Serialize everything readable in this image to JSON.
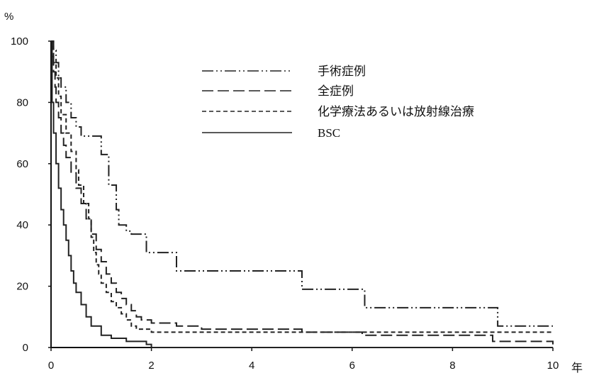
{
  "chart_data": {
    "type": "line",
    "title": "",
    "xlabel": "",
    "ylabel": "",
    "y_unit_label": "%",
    "x_unit_label": "年",
    "xlim": [
      0,
      10
    ],
    "ylim": [
      0,
      100
    ],
    "x_ticks": [
      0,
      2,
      4,
      6,
      8,
      10
    ],
    "y_ticks": [
      0,
      20,
      40,
      60,
      80,
      100
    ],
    "grid": false,
    "legend_position": "top-center",
    "series": [
      {
        "name": "手術症例",
        "style": "dash-dot-dot",
        "color": "#222222",
        "x": [
          0,
          0.05,
          0.1,
          0.15,
          0.2,
          0.3,
          0.4,
          0.5,
          0.6,
          1.0,
          1.15,
          1.3,
          1.35,
          1.5,
          1.6,
          1.9,
          2.5,
          5.0,
          6.25,
          8.9,
          10.0
        ],
        "y": [
          100,
          97,
          93,
          88,
          85,
          80,
          75,
          72,
          69,
          63,
          53,
          45,
          40,
          38,
          37,
          31,
          25,
          19,
          13,
          7,
          7
        ]
      },
      {
        "name": "全症例",
        "style": "dashed",
        "color": "#222222",
        "x": [
          0,
          0.02,
          0.05,
          0.08,
          0.1,
          0.15,
          0.2,
          0.25,
          0.3,
          0.4,
          0.5,
          0.6,
          0.7,
          0.8,
          0.9,
          1.0,
          1.1,
          1.2,
          1.3,
          1.4,
          1.5,
          1.6,
          1.7,
          1.8,
          2.0,
          2.5,
          3.0,
          5.0,
          6.2,
          8.8,
          10.0
        ],
        "y": [
          100,
          95,
          90,
          85,
          80,
          75,
          70,
          66,
          62,
          57,
          52,
          47,
          42,
          37,
          32,
          28,
          24,
          21,
          18,
          16,
          14,
          12,
          10,
          9,
          8,
          7,
          6,
          5,
          4,
          2,
          1
        ]
      },
      {
        "name": "化学療法あるいは放射線治療",
        "style": "dotted-dash",
        "color": "#222222",
        "x": [
          0,
          0.05,
          0.1,
          0.15,
          0.2,
          0.3,
          0.4,
          0.5,
          0.55,
          0.65,
          0.75,
          0.8,
          0.85,
          0.9,
          0.95,
          1.0,
          1.1,
          1.2,
          1.3,
          1.4,
          1.5,
          1.6,
          1.7,
          2.0,
          3.0,
          10.0
        ],
        "y": [
          100,
          93,
          88,
          82,
          76,
          70,
          64,
          58,
          53,
          47,
          42,
          36,
          31,
          27,
          24,
          21,
          18,
          15,
          13,
          11,
          9,
          7,
          6,
          5,
          5,
          5
        ]
      },
      {
        "name": "BSC",
        "style": "solid",
        "color": "#222222",
        "x": [
          0,
          0.02,
          0.05,
          0.1,
          0.15,
          0.2,
          0.25,
          0.3,
          0.35,
          0.4,
          0.45,
          0.5,
          0.6,
          0.7,
          0.8,
          1.0,
          1.2,
          1.5,
          1.9,
          2.0,
          10.0
        ],
        "y": [
          100,
          80,
          70,
          60,
          52,
          45,
          40,
          35,
          30,
          25,
          21,
          18,
          14,
          10,
          7,
          4,
          3,
          2,
          1,
          0,
          0
        ]
      }
    ]
  }
}
